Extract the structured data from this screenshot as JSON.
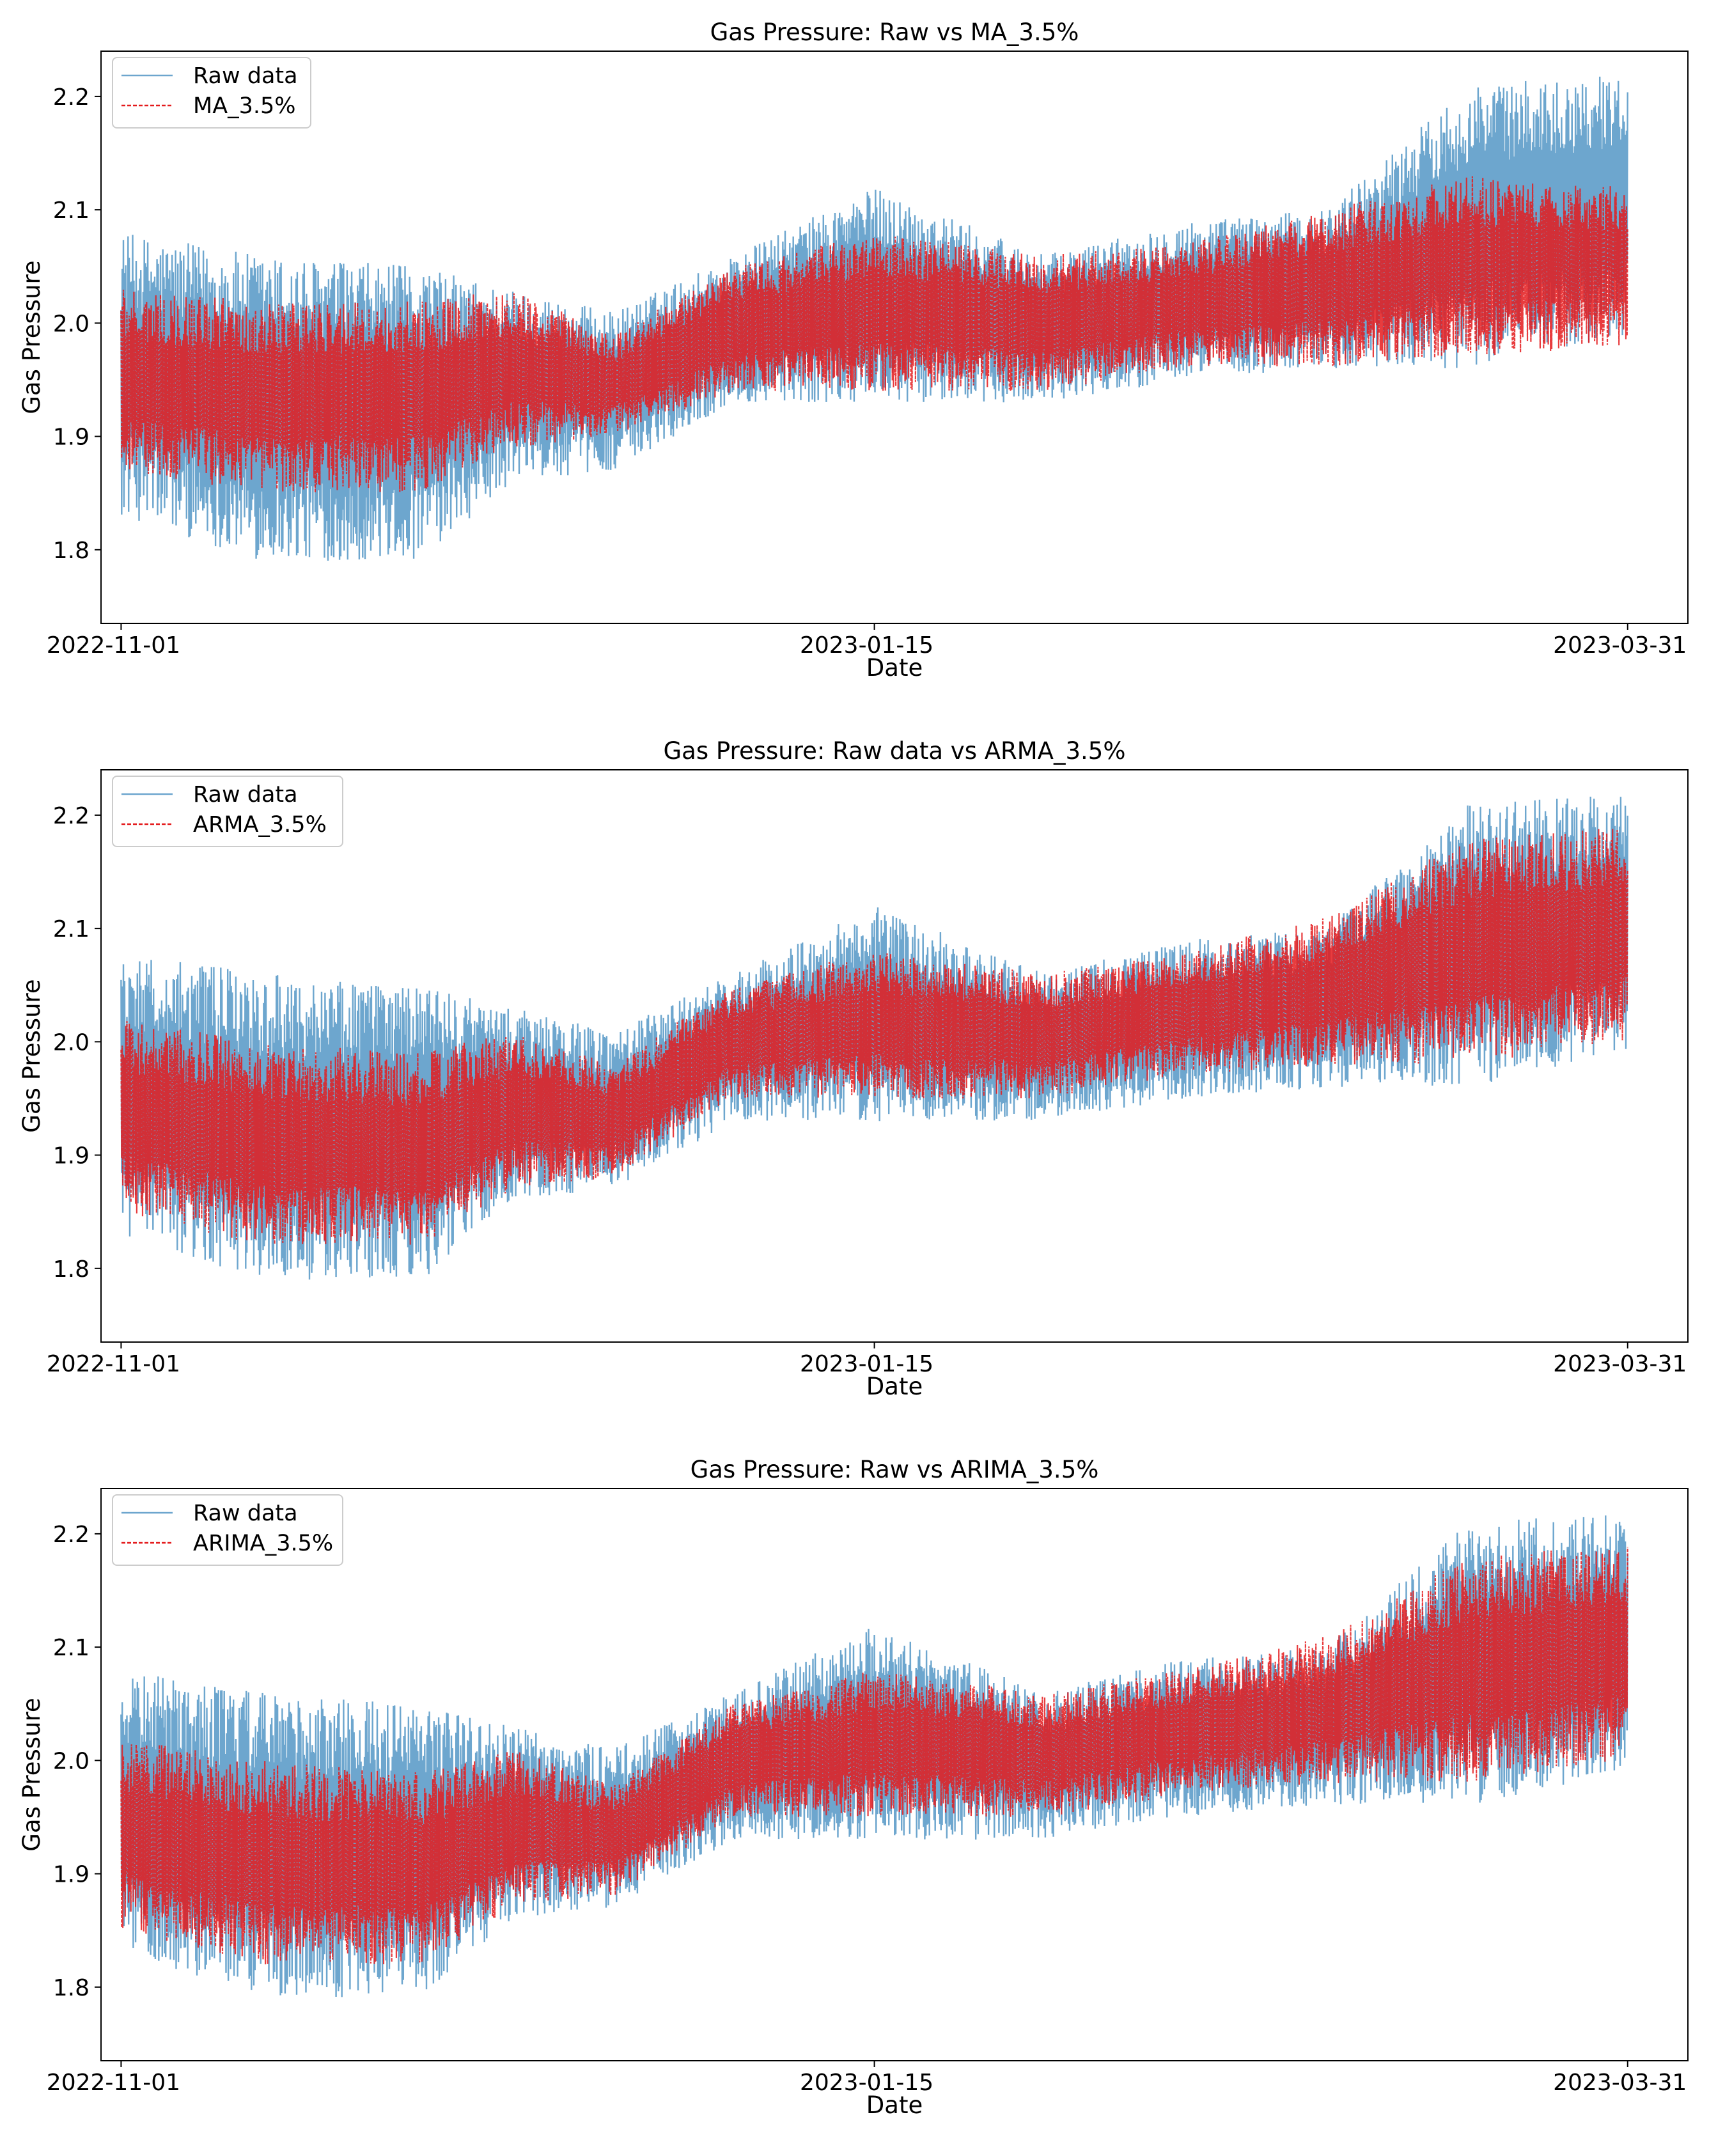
{
  "chart_data": [
    {
      "type": "line",
      "title": "Gas Pressure: Raw vs MA_3.5%",
      "xlabel": "Date",
      "ylabel": "Gas Pressure",
      "x_tick_labels": [
        "2022-11-01",
        "2023-01-15",
        "2023-03-31"
      ],
      "y_tick_labels": [
        "1.8",
        "1.9",
        "2.0",
        "2.1",
        "2.2"
      ],
      "xlim": [
        "2022-10-30",
        "2023-04-06"
      ],
      "ylim": [
        1.735,
        2.24
      ],
      "grid": false,
      "legend_placement": "upper-left",
      "x": [
        "2022-11-01",
        "2022-11-15",
        "2022-12-01",
        "2022-12-10",
        "2022-12-20",
        "2023-01-01",
        "2023-01-15",
        "2023-02-01",
        "2023-02-15",
        "2023-03-01",
        "2023-03-15",
        "2023-03-31"
      ],
      "series": [
        {
          "name": "Raw data",
          "color": "#1f77b4",
          "style": "solid",
          "low": [
            1.83,
            1.79,
            1.79,
            1.86,
            1.87,
            1.93,
            1.93,
            1.93,
            1.95,
            1.96,
            1.96,
            1.99
          ],
          "high": [
            2.08,
            2.06,
            2.05,
            2.03,
            2.01,
            2.06,
            2.12,
            2.06,
            2.09,
            2.1,
            2.21,
            2.22
          ]
        },
        {
          "name": "MA_3.5%",
          "color": "#e41a1c",
          "style": "dashed",
          "low": [
            1.87,
            1.85,
            1.85,
            1.89,
            1.9,
            1.94,
            1.94,
            1.94,
            1.96,
            1.96,
            1.97,
            1.98
          ],
          "high": [
            2.03,
            2.02,
            2.02,
            2.03,
            1.99,
            2.05,
            2.08,
            2.06,
            2.07,
            2.1,
            2.13,
            2.12
          ]
        }
      ]
    },
    {
      "type": "line",
      "title": "Gas Pressure: Raw data vs ARMA_3.5%",
      "xlabel": "Date",
      "ylabel": "Gas Pressure",
      "x_tick_labels": [
        "2022-11-01",
        "2023-01-15",
        "2023-03-31"
      ],
      "y_tick_labels": [
        "1.8",
        "1.9",
        "2.0",
        "2.1",
        "2.2"
      ],
      "xlim": [
        "2022-10-30",
        "2023-04-06"
      ],
      "ylim": [
        1.735,
        2.24
      ],
      "grid": false,
      "legend_placement": "upper-left",
      "x": [
        "2022-11-01",
        "2022-11-15",
        "2022-12-01",
        "2022-12-10",
        "2022-12-20",
        "2023-01-01",
        "2023-01-15",
        "2023-02-01",
        "2023-02-15",
        "2023-03-01",
        "2023-03-15",
        "2023-03-31"
      ],
      "series": [
        {
          "name": "Raw data",
          "color": "#1f77b4",
          "style": "solid",
          "low": [
            1.83,
            1.79,
            1.79,
            1.86,
            1.87,
            1.93,
            1.93,
            1.93,
            1.95,
            1.96,
            1.96,
            1.99
          ],
          "high": [
            2.08,
            2.06,
            2.05,
            2.03,
            2.01,
            2.06,
            2.12,
            2.06,
            2.09,
            2.1,
            2.21,
            2.22
          ]
        },
        {
          "name": "ARMA_3.5%",
          "color": "#e41a1c",
          "style": "dashed",
          "low": [
            1.85,
            1.82,
            1.82,
            1.87,
            1.88,
            1.95,
            1.95,
            1.95,
            1.97,
            1.98,
            1.98,
            2.0
          ],
          "high": [
            2.02,
            2.0,
            1.99,
            2.01,
            1.98,
            2.05,
            2.08,
            2.06,
            2.08,
            2.11,
            2.18,
            2.19
          ]
        }
      ]
    },
    {
      "type": "line",
      "title": "Gas Pressure: Raw vs ARIMA_3.5%",
      "xlabel": "Date",
      "ylabel": "Gas Pressure",
      "x_tick_labels": [
        "2022-11-01",
        "2023-01-15",
        "2023-03-31"
      ],
      "y_tick_labels": [
        "1.8",
        "1.9",
        "2.0",
        "2.1",
        "2.2"
      ],
      "xlim": [
        "2022-10-30",
        "2023-04-06"
      ],
      "ylim": [
        1.735,
        2.24
      ],
      "grid": false,
      "legend_placement": "upper-left",
      "x": [
        "2022-11-01",
        "2022-11-15",
        "2022-12-01",
        "2022-12-10",
        "2022-12-20",
        "2023-01-01",
        "2023-01-15",
        "2023-02-01",
        "2023-02-15",
        "2023-03-01",
        "2023-03-15",
        "2023-03-31"
      ],
      "series": [
        {
          "name": "Raw data",
          "color": "#1f77b4",
          "style": "solid",
          "low": [
            1.83,
            1.79,
            1.79,
            1.86,
            1.87,
            1.93,
            1.93,
            1.93,
            1.95,
            1.96,
            1.96,
            1.99
          ],
          "high": [
            2.08,
            2.06,
            2.05,
            2.03,
            2.01,
            2.06,
            2.12,
            2.06,
            2.09,
            2.1,
            2.21,
            2.22
          ]
        },
        {
          "name": "ARIMA_3.5%",
          "color": "#e41a1c",
          "style": "dashed",
          "low": [
            1.85,
            1.82,
            1.82,
            1.87,
            1.88,
            1.95,
            1.95,
            1.95,
            1.97,
            1.98,
            1.98,
            2.0
          ],
          "high": [
            2.02,
            2.0,
            1.99,
            2.01,
            1.98,
            2.05,
            2.08,
            2.06,
            2.08,
            2.11,
            2.18,
            2.19
          ]
        }
      ]
    }
  ]
}
